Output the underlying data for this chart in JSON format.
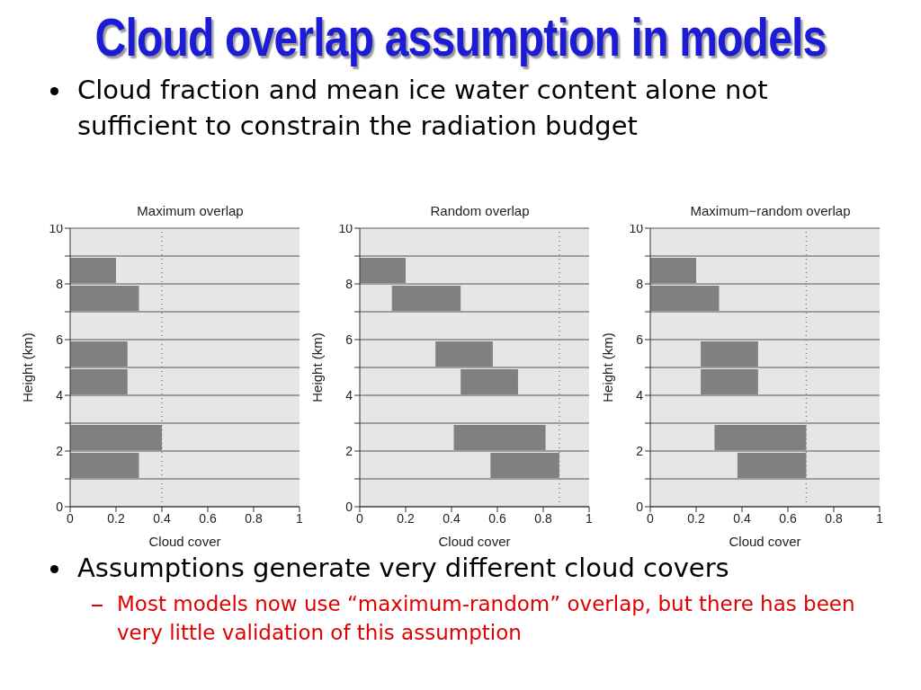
{
  "chart_data": [
    {
      "type": "other",
      "title": "Cloud overlap assumption in models",
      "annotations": [
        "Cloud fraction and mean ice water content alone not sufficient to constrain the radiation budget"
      ]
    },
    {
      "type": "bar",
      "orientation": "horizontal",
      "title": "Maximum overlap",
      "xlabel": "Cloud cover",
      "ylabel": "Height (km)",
      "x": [
        1.5,
        2.5,
        4.5,
        5.5,
        7.5,
        8.5
      ],
      "values": [
        0.3,
        0.4,
        0.25,
        0.25,
        0.3,
        0.2
      ],
      "color": "#808080",
      "xlim": [
        0,
        1
      ],
      "xticks": [
        0,
        0.2,
        0.4,
        0.6,
        0.8,
        1
      ],
      "ylim": [
        0,
        10
      ],
      "yticks": [
        0,
        {
          "value": 1,
          "label": null
        },
        2,
        {
          "value": 3,
          "label": null
        },
        4,
        {
          "value": 5,
          "label": null
        },
        6,
        {
          "value": 7,
          "label": null
        },
        8,
        {
          "value": 9,
          "label": null
        },
        10
      ],
      "grid": "y",
      "ref_lines": [
        {
          "axis": "x",
          "value": 0.4,
          "color": "#808080",
          "line_style": "dotted"
        }
      ]
    },
    {
      "type": "bar",
      "orientation": "horizontal",
      "title": "Random overlap",
      "xlabel": "Cloud cover",
      "ylabel": "Height (km)",
      "x": [
        1.5,
        2.5,
        4.5,
        5.5,
        7.5,
        8.5
      ],
      "base": [
        0.57,
        0.41,
        0.44,
        0.33,
        0.14,
        0
      ],
      "values": [
        0.3,
        0.4,
        0.25,
        0.25,
        0.3,
        0.2
      ],
      "color": "#808080",
      "xlim": [
        0,
        1
      ],
      "xticks": [
        0,
        0.2,
        0.4,
        0.6,
        0.8,
        1
      ],
      "ylim": [
        0,
        10
      ],
      "yticks": [
        0,
        {
          "value": 1,
          "label": null
        },
        2,
        {
          "value": 3,
          "label": null
        },
        4,
        {
          "value": 5,
          "label": null
        },
        6,
        {
          "value": 7,
          "label": null
        },
        8,
        {
          "value": 9,
          "label": null
        },
        10
      ],
      "grid": "y",
      "ref_lines": [
        {
          "axis": "x",
          "value": 0.87,
          "color": "#808080",
          "line_style": "dotted"
        }
      ]
    },
    {
      "type": "bar",
      "orientation": "horizontal",
      "title": "Maximum−random overlap",
      "xlabel": "Cloud cover",
      "ylabel": "Height (km)",
      "x": [
        1.5,
        2.5,
        4.5,
        5.5,
        7.5,
        8.5
      ],
      "base": [
        0.38,
        0.28,
        0.22,
        0.22,
        0,
        0
      ],
      "values": [
        0.3,
        0.4,
        0.25,
        0.25,
        0.3,
        0.2
      ],
      "color": "#808080",
      "xlim": [
        0,
        1
      ],
      "xticks": [
        0,
        0.2,
        0.4,
        0.6,
        0.8,
        1
      ],
      "ylim": [
        0,
        10
      ],
      "yticks": [
        0,
        {
          "value": 1,
          "label": null
        },
        2,
        {
          "value": 3,
          "label": null
        },
        4,
        {
          "value": 5,
          "label": null
        },
        6,
        {
          "value": 7,
          "label": null
        },
        8,
        {
          "value": 9,
          "label": null
        },
        10
      ],
      "grid": "y",
      "ref_lines": [
        {
          "axis": "x",
          "value": 0.68,
          "color": "#808080",
          "line_style": "dotted"
        }
      ]
    },
    {
      "type": "other",
      "annotations": [
        "Assumptions generate very different cloud covers",
        "Most models now use “maximum-random” overlap, but there has been very little validation of this assumption"
      ]
    }
  ]
}
